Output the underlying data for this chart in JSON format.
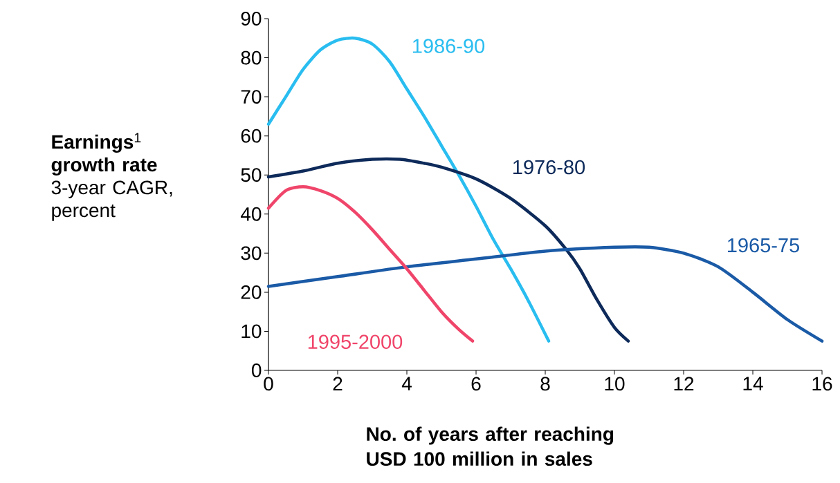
{
  "chart_data": {
    "type": "line",
    "ylabel": "**Earnings**$^{1}$ **growth rate** 3-year CAGR, percent",
    "xlabel": "No. of years after reaching USD 100 million in sales",
    "xlim": [
      0,
      16
    ],
    "xticks": [
      0,
      2,
      4,
      6,
      8,
      10,
      12,
      14,
      16
    ],
    "ylim": [
      0,
      90
    ],
    "yticks": [
      0,
      10,
      20,
      30,
      40,
      50,
      60,
      70,
      80,
      90
    ],
    "grid": false,
    "marker": "none",
    "line_style": "solid",
    "series": [
      {
        "name": "1986-90",
        "color": "#29bdf0",
        "x": [
          0,
          0.5,
          1,
          1.5,
          2,
          2.5,
          3,
          3.5,
          4,
          4.5,
          5,
          5.5,
          6,
          6.5,
          7,
          7.5,
          8.1
        ],
        "values": [
          63,
          70,
          77,
          82,
          84.5,
          85,
          83.5,
          79,
          72,
          65,
          57.5,
          50,
          42,
          33.5,
          26,
          18,
          7.5
        ]
      },
      {
        "name": "1976-80",
        "color": "#0d2a5a",
        "x": [
          0,
          1,
          2,
          3,
          3.8,
          4.5,
          5,
          6,
          7,
          8,
          8.6,
          9,
          9.5,
          10,
          10.4
        ],
        "values": [
          49.5,
          51,
          53,
          54,
          54,
          53,
          52,
          49,
          44,
          37,
          31,
          26,
          18,
          11,
          7.5
        ]
      },
      {
        "name": "1965-75",
        "color": "#1a5aa6",
        "x": [
          0,
          2,
          4,
          6,
          8,
          10,
          11,
          12,
          13,
          14,
          15,
          16
        ],
        "values": [
          21.5,
          24,
          26.5,
          28.5,
          30.5,
          31.5,
          31.5,
          30,
          26.5,
          20,
          13,
          7.5
        ]
      },
      {
        "name": "1995-2000",
        "color": "#f0456a",
        "x": [
          0,
          0.5,
          1,
          1.5,
          2,
          2.5,
          3,
          3.5,
          4,
          4.5,
          5,
          5.5,
          5.9
        ],
        "values": [
          41.5,
          46,
          47,
          46,
          44,
          40.5,
          36,
          31,
          26,
          20.5,
          15,
          10.5,
          7.5
        ]
      }
    ]
  }
}
